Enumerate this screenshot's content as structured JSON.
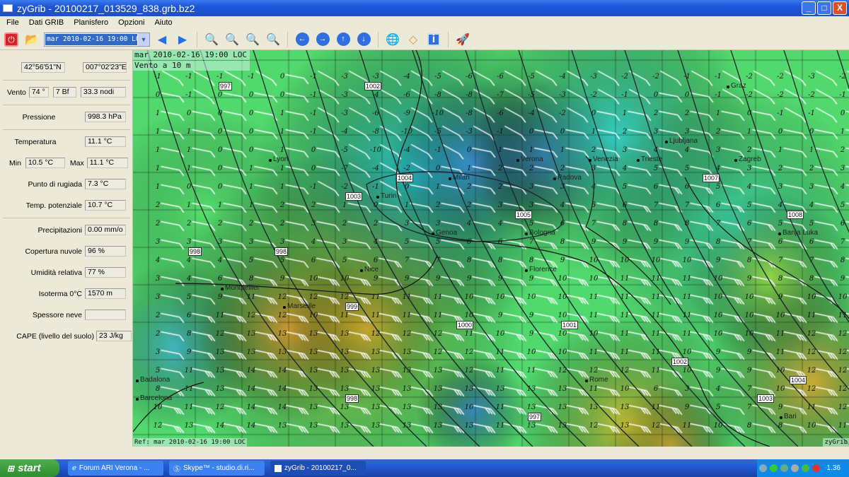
{
  "window": {
    "title": "zyGrib - 20100217_013529_838.grb.bz2",
    "minimize": "_",
    "maximize": "□",
    "close": "X"
  },
  "menu": [
    "File",
    "Dati GRIB",
    "Planisfero",
    "Opzioni",
    "Aiuto"
  ],
  "toolbar": {
    "date_selected": "mar 2010-02-16 19:00 LOC",
    "icons": [
      "power-icon",
      "open-folder-icon",
      "prev-arrow-icon",
      "next-arrow-icon",
      "zoom-in-icon",
      "zoom-out-icon",
      "zoom-fit-icon",
      "zoom-select-icon",
      "pan-left-icon",
      "pan-right-icon",
      "pan-up-icon",
      "pan-down-icon",
      "globe-icon",
      "pin-icon",
      "info-icon",
      "rocket-icon"
    ]
  },
  "panel": {
    "lat": "42°56'51\"N",
    "lon": "007°02'23\"E",
    "wind_label": "Vento",
    "wind_dir": "74 °",
    "wind_bf": "7 Bf",
    "wind_speed": "33.3 nodi",
    "pressure_label": "Pressione",
    "pressure": "998.3 hPa",
    "temp_label": "Temperatura",
    "temp": "11.1 °C",
    "min_label": "Min",
    "min": "10.5 °C",
    "max_label": "Max",
    "max": "11.1 °C",
    "dew_label": "Punto di rugiada",
    "dew": "7.3 °C",
    "pot_label": "Temp. potenziale",
    "pot": "10.7 °C",
    "precip_label": "Precipitazioni",
    "precip": "0.00 mm/o",
    "cloud_label": "Copertura nuvole",
    "cloud": "96 %",
    "hum_label": "Umidità relativa",
    "hum": "77 %",
    "iso_label": "Isoterma 0°C",
    "iso": "1570 m",
    "snow_label": "Spessore neve",
    "snow": "",
    "cape_label": "CAPE (livello del suolo)",
    "cape": "23 J/kg"
  },
  "map": {
    "date_label": "mar 2010-02-16 19:00 LOC",
    "layer_label": "Vento a 10 m",
    "ref_label": "Ref: mar 2010-02-16 19:00 LOC",
    "brand": "zyGrib",
    "cities": [
      "Lyon",
      "Turin",
      "Milan",
      "Verona",
      "Padova",
      "Venezia",
      "Genoa",
      "Bologna",
      "Florence",
      "Nice",
      "Marseille",
      "Montpellier",
      "Barcelona",
      "Badalona",
      "Rome",
      "Bari",
      "Ljubljana",
      "Trieste",
      "Zagreb",
      "Graz",
      "Banja Luka"
    ],
    "isobar_labels": [
      "997",
      "1002",
      "1003",
      "1004",
      "1005",
      "998",
      "998",
      "999",
      "1000",
      "1001",
      "1002",
      "998",
      "997",
      "1003",
      "1004",
      "1007",
      "1008"
    ],
    "grid_values": [
      [
        -1,
        -1,
        -1,
        -1,
        0,
        -1,
        -3,
        -3,
        -4,
        -5,
        -6,
        -6,
        -5,
        -4,
        -3,
        -2,
        -2,
        -1,
        -1,
        -2,
        -2,
        -3,
        -2
      ],
      [
        0,
        -1,
        0,
        0,
        0,
        -1,
        -3,
        -4,
        -6,
        -8,
        -8,
        -7,
        -5,
        -3,
        -2,
        -1,
        0,
        0,
        -1,
        -2,
        -2,
        -2,
        -1
      ],
      [
        1,
        0,
        0,
        0,
        1,
        -1,
        -3,
        -6,
        -9,
        -10,
        -8,
        -6,
        -4,
        -2,
        0,
        1,
        2,
        2,
        1,
        0,
        -1,
        -1,
        0
      ],
      [
        1,
        1,
        0,
        0,
        1,
        -1,
        -4,
        -8,
        -10,
        -5,
        -3,
        -1,
        0,
        0,
        1,
        2,
        3,
        3,
        2,
        1,
        0,
        0,
        1
      ],
      [
        1,
        1,
        0,
        0,
        1,
        0,
        -5,
        -10,
        -4,
        -1,
        0,
        1,
        1,
        1,
        2,
        3,
        4,
        4,
        3,
        2,
        1,
        1,
        2
      ],
      [
        1,
        1,
        0,
        1,
        1,
        0,
        -7,
        -4,
        -2,
        0,
        1,
        2,
        2,
        2,
        3,
        4,
        5,
        5,
        4,
        3,
        2,
        2,
        3
      ],
      [
        1,
        0,
        0,
        1,
        1,
        -1,
        -2,
        -1,
        0,
        1,
        2,
        2,
        3,
        3,
        4,
        5,
        6,
        6,
        5,
        4,
        3,
        3,
        4
      ],
      [
        2,
        1,
        1,
        1,
        2,
        2,
        1,
        0,
        1,
        2,
        2,
        3,
        3,
        4,
        5,
        6,
        7,
        7,
        6,
        5,
        4,
        4,
        5
      ],
      [
        2,
        2,
        2,
        2,
        2,
        3,
        2,
        2,
        3,
        3,
        4,
        4,
        5,
        6,
        7,
        8,
        8,
        8,
        7,
        6,
        5,
        5,
        6
      ],
      [
        3,
        3,
        3,
        3,
        3,
        4,
        3,
        4,
        5,
        5,
        6,
        6,
        7,
        8,
        9,
        9,
        9,
        9,
        8,
        7,
        6,
        6,
        7
      ],
      [
        4,
        4,
        4,
        5,
        5,
        6,
        5,
        6,
        7,
        7,
        8,
        8,
        8,
        9,
        10,
        10,
        10,
        10,
        9,
        8,
        7,
        7,
        8
      ],
      [
        3,
        4,
        6,
        8,
        9,
        10,
        10,
        9,
        9,
        9,
        9,
        9,
        9,
        10,
        10,
        11,
        11,
        11,
        10,
        9,
        8,
        8,
        9
      ],
      [
        3,
        5,
        9,
        11,
        12,
        12,
        12,
        11,
        11,
        11,
        10,
        10,
        10,
        10,
        11,
        11,
        11,
        11,
        10,
        10,
        9,
        10,
        10
      ],
      [
        2,
        6,
        11,
        12,
        12,
        10,
        11,
        11,
        11,
        11,
        10,
        9,
        9,
        10,
        11,
        11,
        11,
        11,
        10,
        10,
        10,
        11,
        11
      ],
      [
        2,
        8,
        12,
        13,
        13,
        13,
        13,
        12,
        12,
        12,
        11,
        10,
        9,
        10,
        10,
        11,
        11,
        11,
        10,
        10,
        11,
        12,
        12
      ],
      [
        3,
        9,
        13,
        13,
        13,
        13,
        13,
        13,
        13,
        12,
        12,
        11,
        10,
        10,
        11,
        11,
        11,
        10,
        9,
        9,
        11,
        12,
        12
      ],
      [
        5,
        11,
        13,
        14,
        14,
        13,
        13,
        13,
        13,
        13,
        12,
        11,
        11,
        12,
        12,
        12,
        11,
        10,
        9,
        9,
        10,
        12,
        12
      ],
      [
        8,
        11,
        13,
        14,
        14,
        13,
        13,
        13,
        13,
        13,
        13,
        13,
        13,
        13,
        11,
        10,
        6,
        3,
        4,
        7,
        10,
        12,
        12
      ],
      [
        10,
        11,
        12,
        14,
        14,
        13,
        13,
        13,
        13,
        13,
        10,
        11,
        13,
        13,
        13,
        13,
        11,
        9,
        5,
        7,
        9,
        11,
        12
      ],
      [
        12,
        13,
        14,
        14,
        13,
        13,
        13,
        13,
        13,
        13,
        13,
        11,
        13,
        13,
        12,
        13,
        12,
        11,
        10,
        8,
        8,
        10,
        11
      ]
    ]
  },
  "taskbar": {
    "start": "start",
    "tasks": [
      "Forum ARI Verona - ...",
      "Skype™ - studio.di.ri...",
      "zyGrib - 20100217_0..."
    ],
    "clock": "1.36"
  }
}
